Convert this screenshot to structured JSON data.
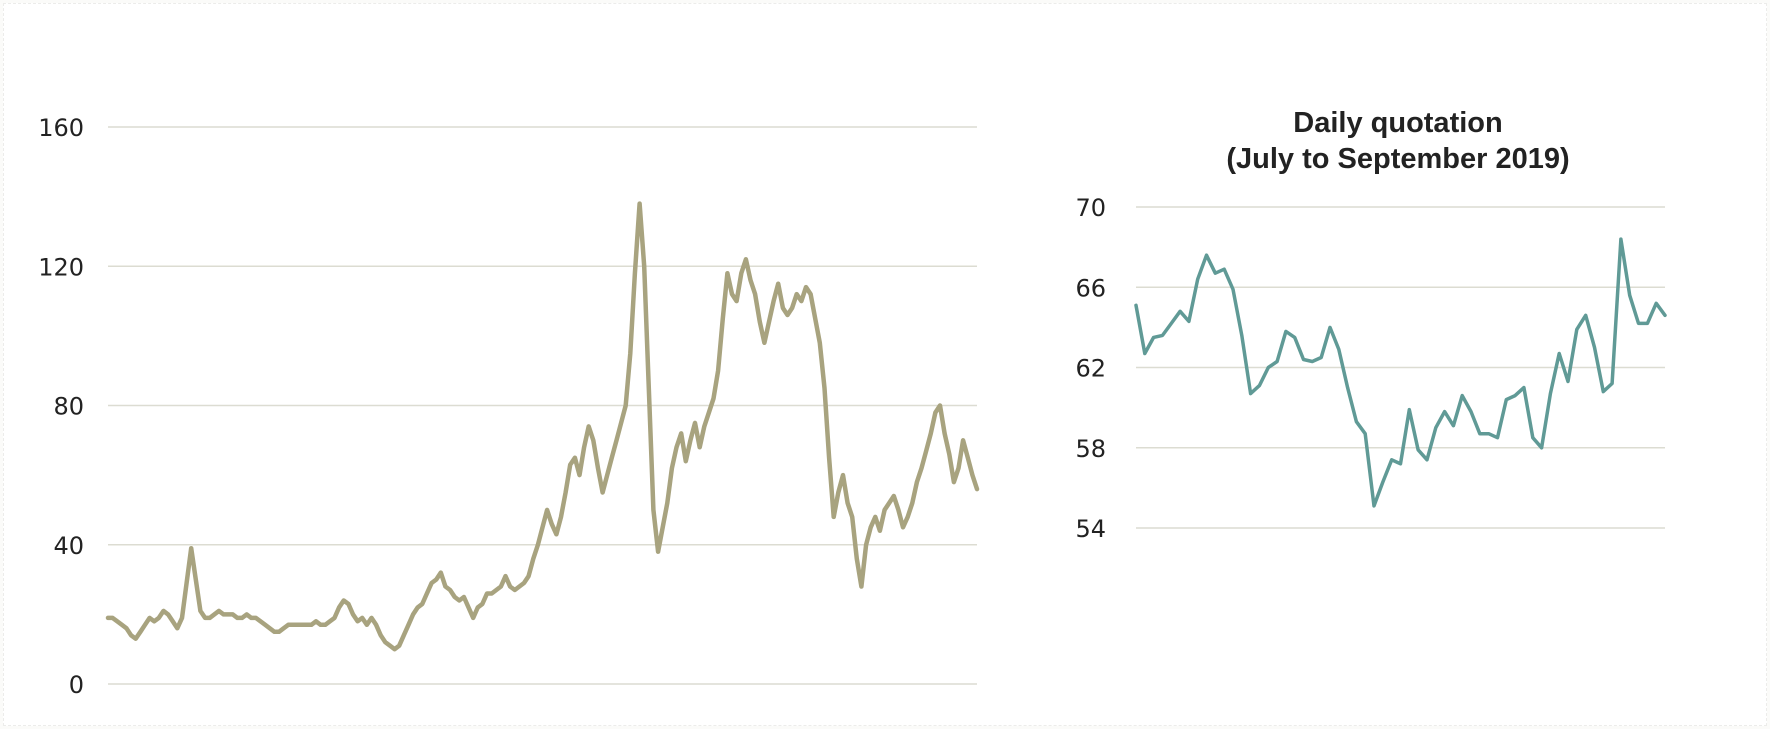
{
  "colors": {
    "background": "#ffffff",
    "grid": "#dcdcd2",
    "main_series": "#a8a37f",
    "inset_series": "#609a96",
    "text": "#222222"
  },
  "chart_data": [
    {
      "type": "line",
      "title": "",
      "xlabel": "",
      "ylabel": "",
      "grid": true,
      "ylim": [
        0,
        160
      ],
      "y_ticks": [
        "160",
        "120",
        "80",
        "40",
        "0"
      ],
      "series": [
        {
          "values": [
            19,
            19,
            18,
            17,
            16,
            14,
            13,
            15,
            17,
            19,
            18,
            19,
            21,
            20,
            18,
            16,
            19,
            29,
            39,
            30,
            21,
            19,
            19,
            20,
            21,
            20,
            20,
            20,
            19,
            19,
            20,
            19,
            19,
            18,
            17,
            16,
            15,
            15,
            16,
            17,
            17,
            17,
            17,
            17,
            17,
            18,
            17,
            17,
            18,
            19,
            22,
            24,
            23,
            20,
            18,
            19,
            17,
            19,
            17,
            14,
            12,
            11,
            10,
            11,
            14,
            17,
            20,
            22,
            23,
            26,
            29,
            30,
            32,
            28,
            27,
            25,
            24,
            25,
            22,
            19,
            22,
            23,
            26,
            26,
            27,
            28,
            31,
            28,
            27,
            28,
            29,
            31,
            36,
            40,
            45,
            50,
            46,
            43,
            48,
            55,
            63,
            65,
            60,
            68,
            74,
            70,
            62,
            55,
            60,
            65,
            70,
            75,
            80,
            95,
            118,
            138,
            120,
            85,
            50,
            38,
            45,
            52,
            62,
            68,
            72,
            64,
            70,
            75,
            68,
            74,
            78,
            82,
            90,
            105,
            118,
            112,
            110,
            118,
            122,
            116,
            112,
            104,
            98,
            104,
            110,
            115,
            108,
            106,
            108,
            112,
            110,
            114,
            112,
            105,
            98,
            85,
            65,
            48,
            55,
            60,
            52,
            48,
            36,
            28,
            40,
            45,
            48,
            44,
            50,
            52,
            54,
            50,
            45,
            48,
            52,
            58,
            62,
            67,
            72,
            78,
            80,
            72,
            66,
            58,
            62,
            70,
            65,
            60,
            56
          ]
        }
      ]
    },
    {
      "type": "line",
      "title": "Daily quotation",
      "subtitle": "(July to September 2019)",
      "xlabel": "",
      "ylabel": "",
      "grid": true,
      "ylim": [
        54,
        70
      ],
      "y_ticks": [
        "70",
        "66",
        "62",
        "58",
        "54"
      ],
      "series": [
        {
          "values": [
            65.1,
            62.7,
            63.5,
            63.6,
            64.2,
            64.8,
            64.3,
            66.4,
            67.6,
            66.7,
            66.9,
            65.9,
            63.6,
            60.7,
            61.1,
            62.0,
            62.3,
            63.8,
            63.5,
            62.4,
            62.3,
            62.5,
            64.0,
            62.9,
            61.0,
            59.3,
            58.7,
            55.1,
            56.3,
            57.4,
            57.2,
            59.9,
            57.9,
            57.4,
            59.0,
            59.8,
            59.1,
            60.6,
            59.8,
            58.7,
            58.7,
            58.5,
            60.4,
            60.6,
            61.0,
            58.5,
            58.0,
            60.7,
            62.7,
            61.3,
            63.9,
            64.6,
            63.0,
            60.8,
            61.2,
            68.4,
            65.6,
            64.2,
            64.2,
            65.2,
            64.6
          ]
        }
      ]
    }
  ]
}
